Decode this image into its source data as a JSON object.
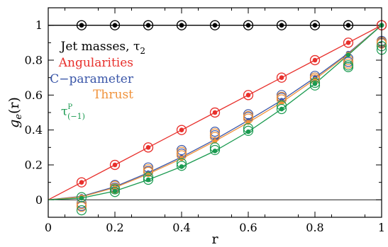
{
  "chart_data": {
    "type": "scatter",
    "xlabel": "r",
    "ylabel": "g_e(r)",
    "xlim": [
      0,
      1
    ],
    "ylim": [
      -0.1,
      1.1
    ],
    "x_ticks": [
      "0",
      "0.2",
      "0.4",
      "0.6",
      "0.8",
      "1"
    ],
    "y_ticks": [
      "0",
      "0.2",
      "0.4",
      "0.6",
      "0.8",
      "1"
    ],
    "grid": false,
    "legend_position": "top-left",
    "series": [
      {
        "name": "Jet masses, τ",
        "name_sub": "2",
        "color": "#000000",
        "curve": {
          "x": [
            0,
            0.1,
            0.2,
            0.3,
            0.4,
            0.5,
            0.6,
            0.7,
            0.8,
            0.9,
            1.0
          ],
          "y": [
            1,
            1,
            1,
            1,
            1,
            1,
            1,
            1,
            1,
            1,
            1
          ]
        },
        "filled": {
          "x": [
            0.1,
            0.2,
            0.3,
            0.4,
            0.5,
            0.6,
            0.7,
            0.8,
            0.9,
            1.0
          ],
          "y": [
            1,
            1,
            1,
            1,
            1,
            1,
            1,
            1,
            1,
            1
          ]
        },
        "open_upper": {
          "x": [
            0.1,
            0.2,
            0.3,
            0.4,
            0.5,
            0.6,
            0.7,
            0.8,
            0.9,
            1.0
          ],
          "y": [
            1,
            1,
            1,
            1,
            1,
            1,
            1,
            1,
            1,
            1
          ]
        },
        "open_lower": {
          "x": [
            0.1,
            0.2,
            0.3,
            0.4,
            0.5,
            0.6,
            0.7,
            0.8,
            0.9,
            1.0
          ],
          "y": [
            1,
            1,
            1,
            1,
            1,
            1,
            1,
            1,
            1,
            1
          ]
        }
      },
      {
        "name": "Angularities",
        "color": "#e8302c",
        "curve": {
          "x": [
            0,
            0.1,
            0.2,
            0.3,
            0.4,
            0.5,
            0.6,
            0.7,
            0.8,
            0.9,
            1.0
          ],
          "y": [
            0,
            0.1,
            0.2,
            0.3,
            0.4,
            0.5,
            0.6,
            0.7,
            0.8,
            0.9,
            1.0
          ]
        },
        "filled": {
          "x": [
            0.1,
            0.2,
            0.3,
            0.4,
            0.5,
            0.6,
            0.7,
            0.8,
            0.9,
            1.0
          ],
          "y": [
            0.1,
            0.2,
            0.3,
            0.4,
            0.5,
            0.6,
            0.7,
            0.8,
            0.9,
            1.0
          ]
        },
        "open_upper": {
          "x": [
            0.1,
            0.2,
            0.3,
            0.4,
            0.5,
            0.6,
            0.7,
            0.8,
            0.9,
            1.0
          ],
          "y": [
            0.1,
            0.2,
            0.3,
            0.4,
            0.5,
            0.6,
            0.7,
            0.8,
            0.9,
            1.0
          ]
        },
        "open_lower": {
          "x": [
            0.1,
            0.2,
            0.3,
            0.4,
            0.5,
            0.6,
            0.7,
            0.8,
            0.9,
            1.0
          ],
          "y": [
            0.1,
            0.2,
            0.3,
            0.4,
            0.5,
            0.6,
            0.7,
            0.8,
            0.9,
            1.0
          ]
        }
      },
      {
        "name": "C−parameter",
        "color": "#3a56a8",
        "curve": {
          "x": [
            0,
            0.1,
            0.2,
            0.3,
            0.4,
            0.5,
            0.6,
            0.7,
            0.8,
            0.9,
            1.0
          ],
          "y": [
            0,
            0.02,
            0.075,
            0.155,
            0.245,
            0.345,
            0.455,
            0.57,
            0.7,
            0.84,
            1.0
          ]
        },
        "filled": {
          "x": [
            0.1,
            0.2,
            0.3,
            0.4,
            0.5,
            0.6,
            0.7,
            0.8,
            0.9,
            1.0
          ],
          "y": [
            0.02,
            0.075,
            0.155,
            0.245,
            0.345,
            0.455,
            0.57,
            0.7,
            0.84,
            1.0
          ]
        },
        "open_upper": {
          "x": [
            0.1,
            0.2,
            0.3,
            0.4,
            0.5,
            0.6,
            0.7,
            0.8,
            0.9,
            1.0
          ],
          "y": [
            -0.02,
            0.085,
            0.185,
            0.285,
            0.39,
            0.49,
            0.6,
            0.71,
            0.81,
            0.91
          ]
        },
        "open_lower": {
          "x": [
            0.1,
            0.2,
            0.3,
            0.4,
            0.5,
            0.6,
            0.7,
            0.8,
            0.9,
            1.0
          ],
          "y": [
            -0.035,
            0.07,
            0.165,
            0.265,
            0.37,
            0.475,
            0.585,
            0.7,
            0.79,
            0.9
          ]
        }
      },
      {
        "name": "Thrust",
        "color": "#f0923a",
        "curve": {
          "x": [
            0,
            0.1,
            0.2,
            0.3,
            0.4,
            0.5,
            0.6,
            0.7,
            0.8,
            0.9,
            1.0
          ],
          "y": [
            0,
            0.017,
            0.07,
            0.148,
            0.236,
            0.336,
            0.443,
            0.558,
            0.69,
            0.835,
            1.0
          ]
        },
        "filled": {
          "x": [
            0.1,
            0.2,
            0.3,
            0.4,
            0.5,
            0.6,
            0.7,
            0.8,
            0.9,
            1.0
          ],
          "y": [
            0.017,
            0.07,
            0.148,
            0.236,
            0.336,
            0.443,
            0.558,
            0.69,
            0.835,
            1.0
          ]
        },
        "open_upper": {
          "x": [
            0.1,
            0.2,
            0.3,
            0.4,
            0.5,
            0.6,
            0.7,
            0.8,
            0.9,
            1.0
          ],
          "y": [
            -0.025,
            0.08,
            0.175,
            0.275,
            0.38,
            0.48,
            0.59,
            0.7,
            0.8,
            0.905
          ]
        },
        "open_lower": {
          "x": [
            0.1,
            0.2,
            0.3,
            0.4,
            0.5,
            0.6,
            0.7,
            0.8,
            0.9,
            1.0
          ],
          "y": [
            -0.04,
            0.065,
            0.16,
            0.255,
            0.36,
            0.465,
            0.575,
            0.69,
            0.78,
            0.895
          ]
        }
      },
      {
        "name": "τ",
        "name_sup": "P",
        "name_sub": "(−1)",
        "color": "#1a9a50",
        "curve": {
          "x": [
            0,
            0.1,
            0.2,
            0.3,
            0.4,
            0.5,
            0.6,
            0.7,
            0.8,
            0.9,
            1.0
          ],
          "y": [
            0,
            0.01,
            0.05,
            0.115,
            0.19,
            0.28,
            0.39,
            0.52,
            0.665,
            0.83,
            1.0
          ]
        },
        "filled": {
          "x": [
            0.1,
            0.2,
            0.3,
            0.4,
            0.5,
            0.6,
            0.7,
            0.8,
            0.9,
            1.0
          ],
          "y": [
            0.01,
            0.05,
            0.115,
            0.19,
            0.28,
            0.39,
            0.52,
            0.665,
            0.83,
            1.0
          ]
        },
        "open_upper": {
          "x": [
            0.1,
            0.2,
            0.3,
            0.4,
            0.5,
            0.6,
            0.7,
            0.8,
            0.9,
            1.0
          ],
          "y": [
            0.015,
            0.06,
            0.13,
            0.21,
            0.3,
            0.41,
            0.54,
            0.67,
            0.77,
            0.88
          ]
        },
        "open_lower": {
          "x": [
            0.1,
            0.2,
            0.3,
            0.4,
            0.5,
            0.6,
            0.7,
            0.8,
            0.9,
            1.0
          ],
          "y": [
            -0.06,
            0.045,
            0.115,
            0.195,
            0.285,
            0.395,
            0.52,
            0.655,
            0.76,
            0.86
          ]
        }
      }
    ]
  }
}
